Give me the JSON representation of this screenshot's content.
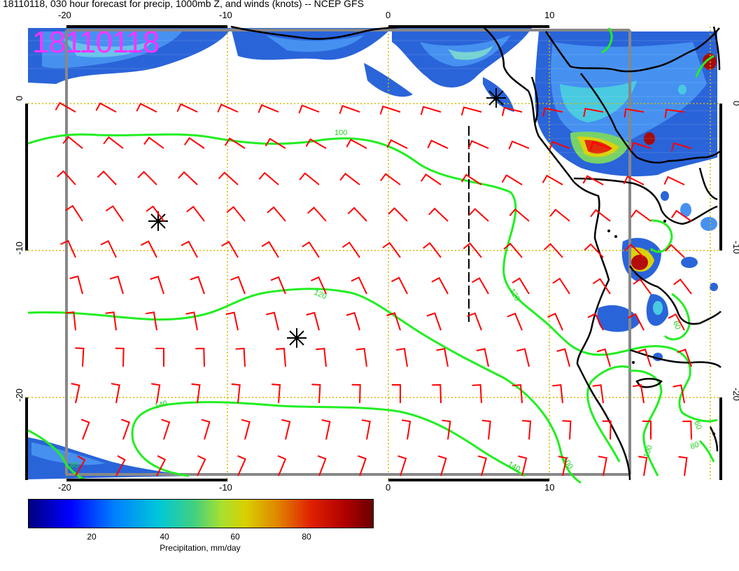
{
  "title": "18110118, 030 hour forecast for precip, 1000mb Z, and winds (knots) -- NCEP GFS",
  "datetime_stamp": "18110118",
  "map": {
    "lon_ticks": [
      "-20",
      "-10",
      "0",
      "10"
    ],
    "lat_ticks": [
      "0",
      "-10",
      "-20"
    ],
    "contour_labels": [
      "100",
      "120",
      "120",
      "140",
      "140",
      "100",
      "80",
      "60",
      "60",
      "100",
      "80"
    ],
    "line_colors": {
      "contour": "#22ee22",
      "wind_barb": "#ff0000",
      "coastline": "#000000",
      "gridline": "#d4b800",
      "frame": "#888888"
    }
  },
  "colorbar": {
    "ticks": [
      "20",
      "40",
      "60",
      "80"
    ],
    "label": "Precipitation, mm/day",
    "range": [
      0,
      100
    ]
  }
}
